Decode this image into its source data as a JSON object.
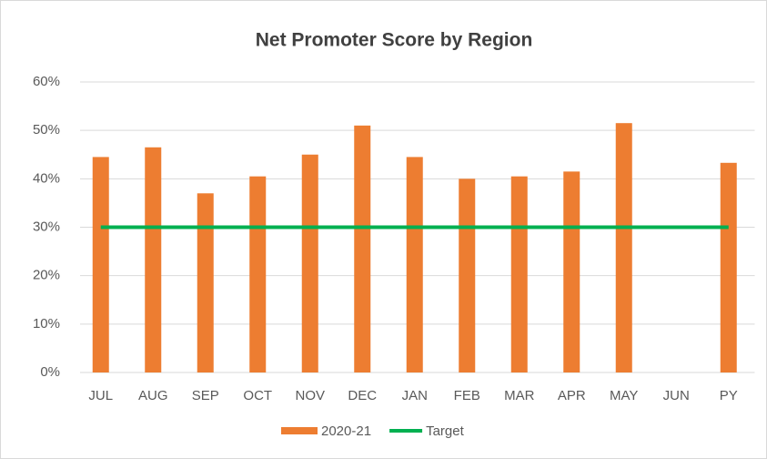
{
  "chart_data": {
    "type": "bar",
    "title": "Net Promoter Score by Region",
    "categories": [
      "JUL",
      "AUG",
      "SEP",
      "OCT",
      "NOV",
      "DEC",
      "JAN",
      "FEB",
      "MAR",
      "APR",
      "MAY",
      "JUN",
      "PY"
    ],
    "series": [
      {
        "name": "2020-21",
        "type": "bar",
        "color": "#ed7d31",
        "values": [
          44.5,
          46.5,
          37,
          40.5,
          45,
          51,
          44.5,
          40,
          40.5,
          41.5,
          51.5,
          null,
          43.3
        ]
      },
      {
        "name": "Target",
        "type": "line",
        "color": "#00b050",
        "values": [
          30,
          30,
          30,
          30,
          30,
          30,
          30,
          30,
          30,
          30,
          30,
          30,
          30
        ]
      }
    ],
    "ylim": [
      0,
      60
    ],
    "yticks": [
      {
        "value": 0,
        "label": "0%"
      },
      {
        "value": 10,
        "label": "10%"
      },
      {
        "value": 20,
        "label": "20%"
      },
      {
        "value": 30,
        "label": "30%"
      },
      {
        "value": 40,
        "label": "40%"
      },
      {
        "value": 50,
        "label": "50%"
      },
      {
        "value": 60,
        "label": "60%"
      }
    ],
    "grid": true
  }
}
